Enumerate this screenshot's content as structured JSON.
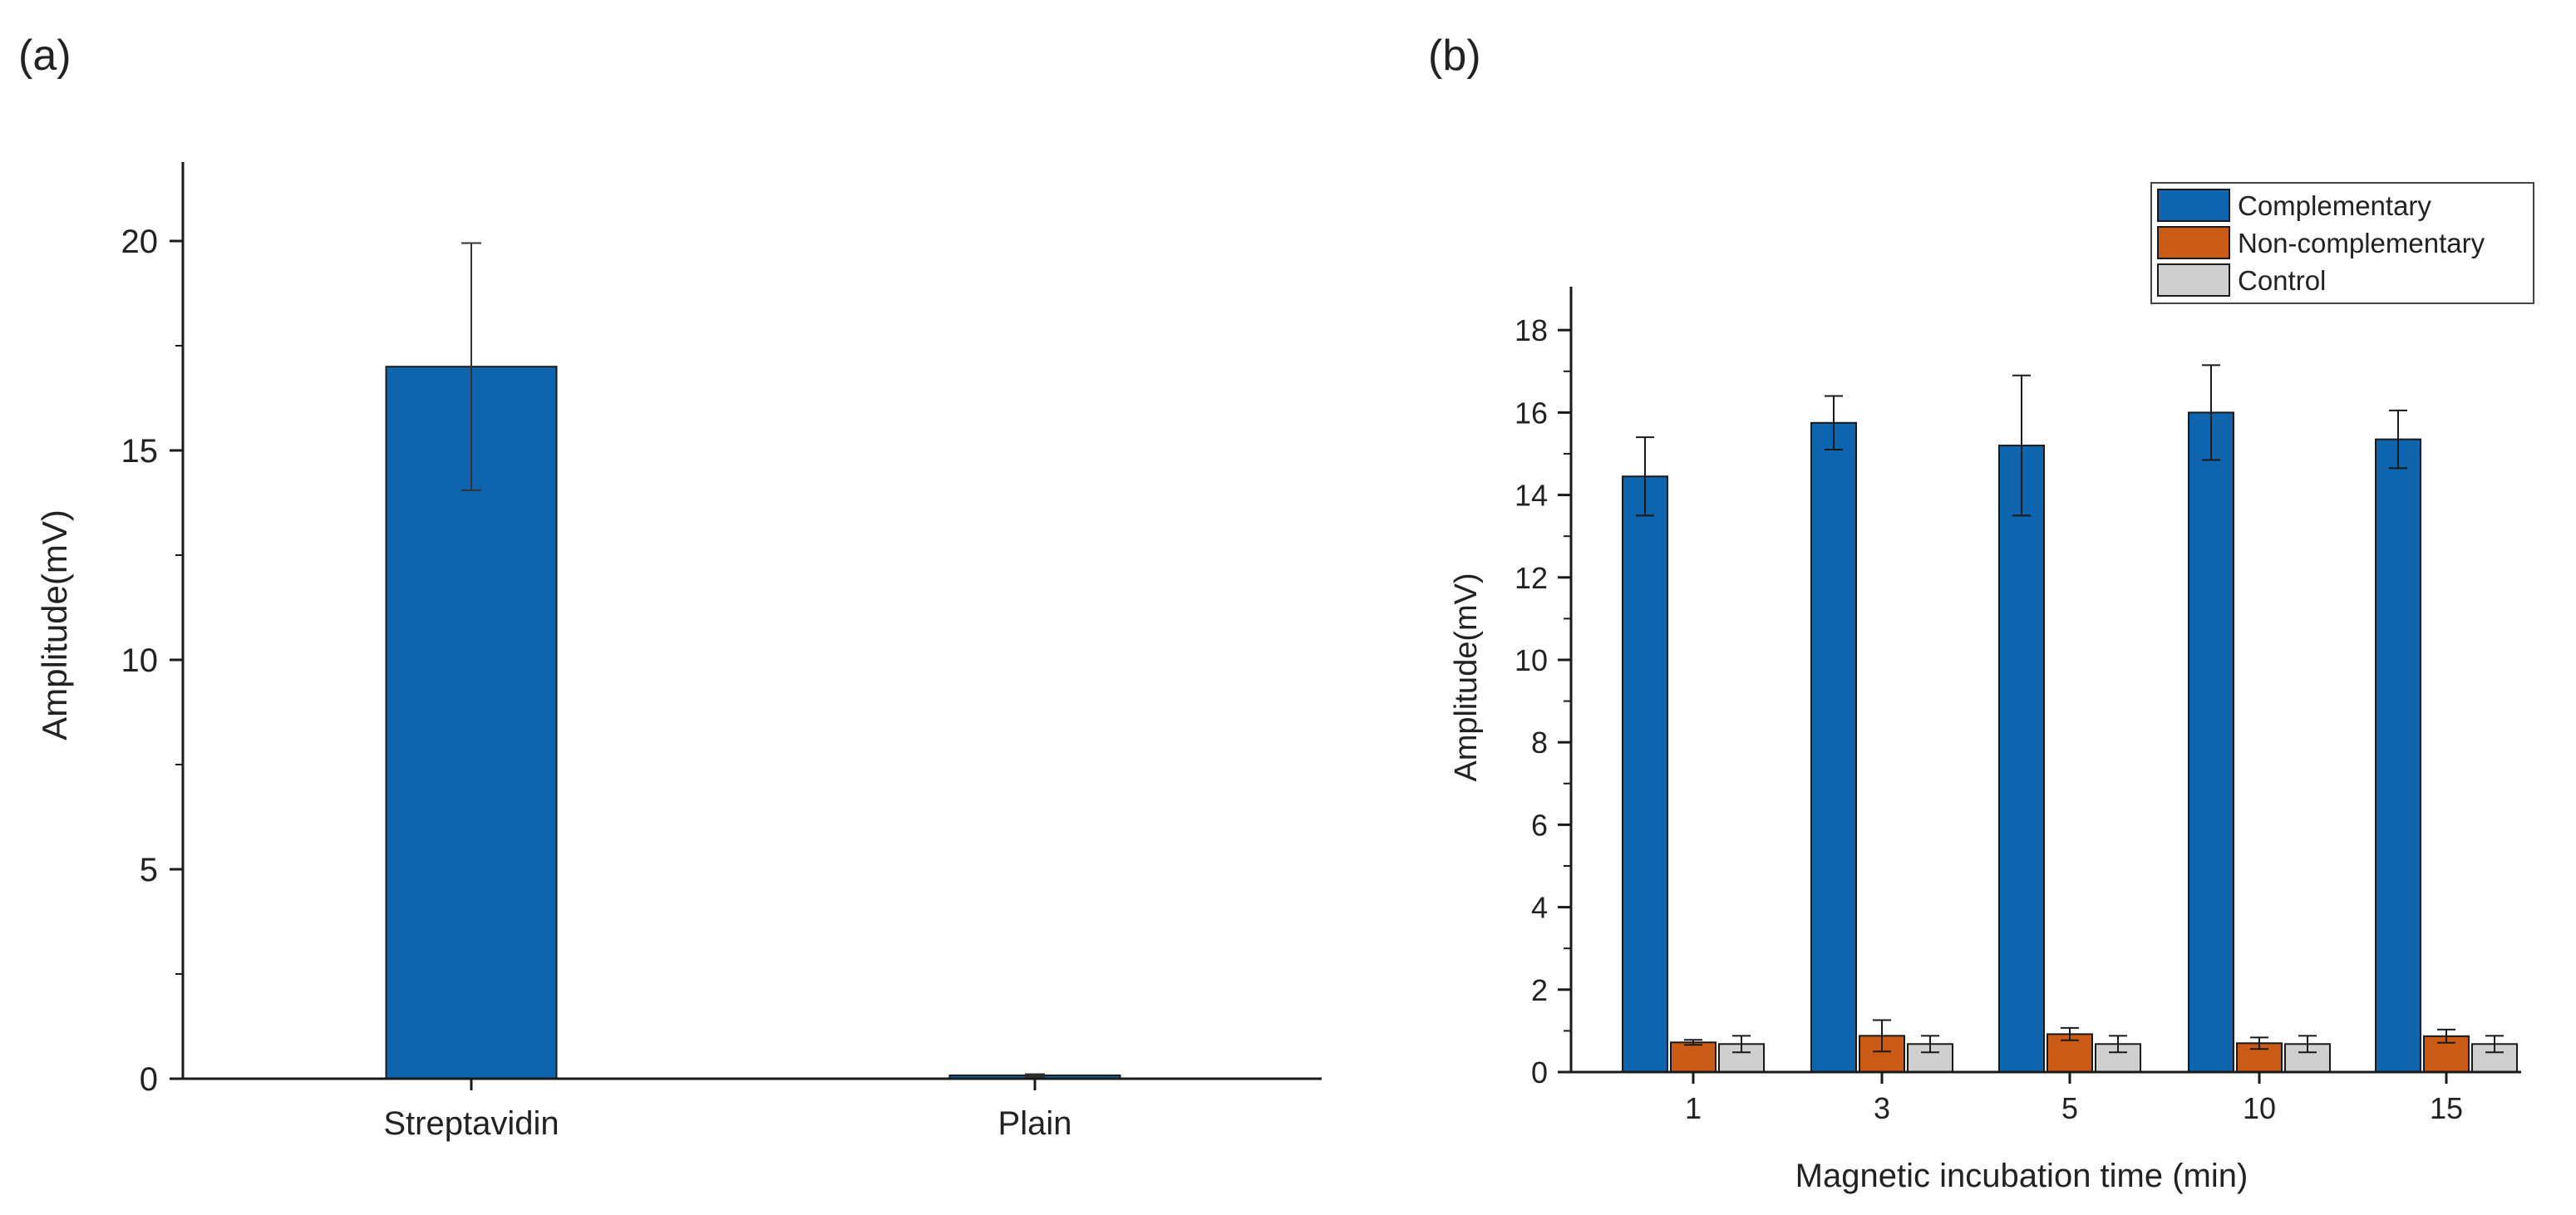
{
  "panels": {
    "a_label": "(a)",
    "b_label": "(b)"
  },
  "colors": {
    "axis": "#1a1a1a",
    "complementary": "#0f65ad",
    "noncomplementary": "#c95b16",
    "control": "#cfcfcf",
    "bar_outline": "#1a1a1a"
  },
  "chart_data": [
    {
      "type": "bar",
      "panel": "(a)",
      "categories": [
        "Streptavidin",
        "Plain"
      ],
      "values": [
        17.0,
        0.08
      ],
      "errors": [
        2.95,
        0.03
      ],
      "xlabel": "",
      "ylabel": "Amplitude(mV)",
      "ylim": [
        0,
        22
      ],
      "yticks": [
        0,
        5,
        10,
        15,
        20
      ],
      "yticks_minor": [
        2.5,
        7.5,
        12.5,
        17.5
      ],
      "grid": false,
      "legend": "none"
    },
    {
      "type": "bar",
      "panel": "(b)",
      "categories": [
        "1",
        "3",
        "5",
        "10",
        "15"
      ],
      "series": [
        {
          "name": "Complementary",
          "values": [
            14.45,
            15.75,
            15.2,
            16.0,
            15.35
          ],
          "errors": [
            0.95,
            0.65,
            1.7,
            1.15,
            0.7
          ]
        },
        {
          "name": "Non-complementary",
          "values": [
            0.72,
            0.88,
            0.92,
            0.7,
            0.87
          ],
          "errors": [
            0.06,
            0.38,
            0.15,
            0.14,
            0.16
          ]
        },
        {
          "name": "Control",
          "values": [
            0.68,
            0.68,
            0.68,
            0.68,
            0.68
          ],
          "errors": [
            0.2,
            0.2,
            0.2,
            0.2,
            0.2
          ]
        }
      ],
      "xlabel": "Magnetic incubation time (min)",
      "ylabel": "Amplitude(mV)",
      "ylim": [
        0,
        19
      ],
      "yticks": [
        0,
        2,
        4,
        6,
        8,
        10,
        12,
        14,
        16,
        18
      ],
      "grid": false,
      "legend": "top-right"
    }
  ]
}
